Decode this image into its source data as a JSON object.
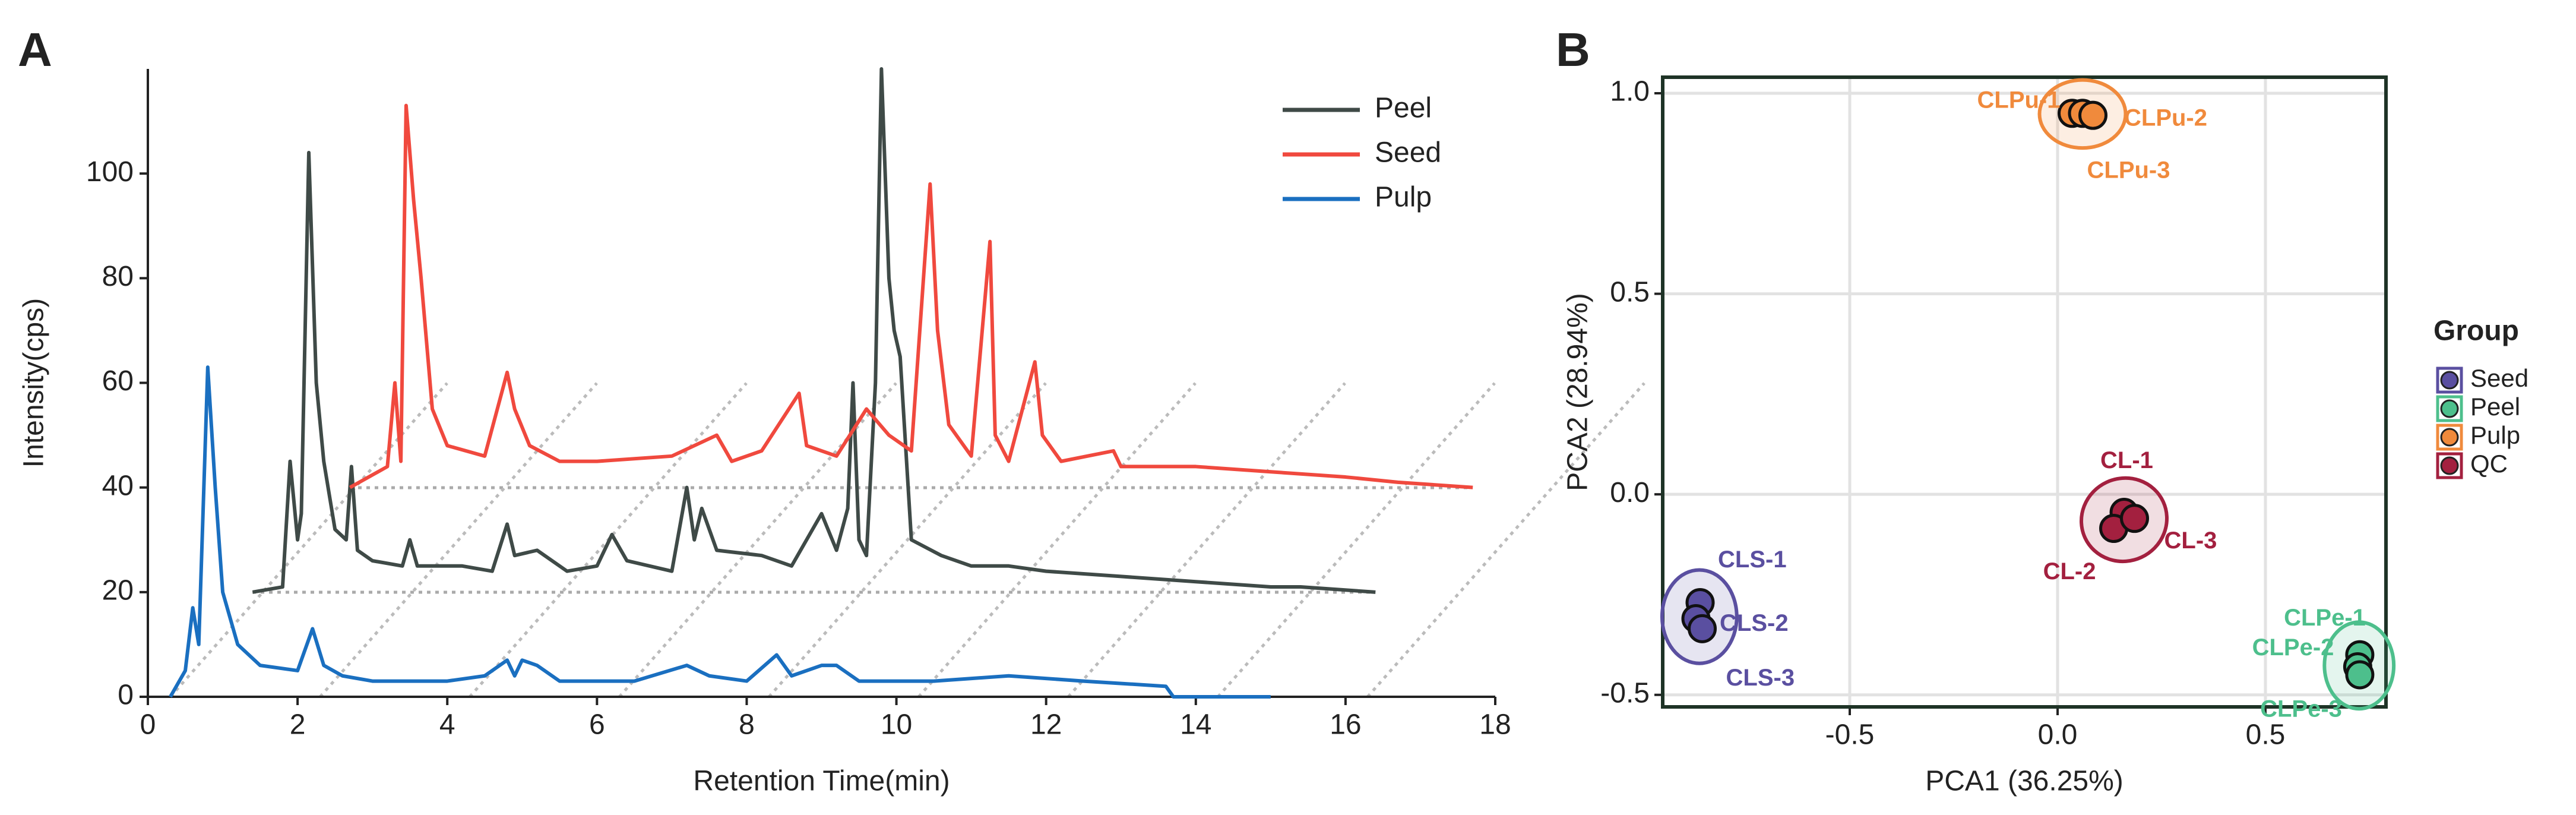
{
  "chart_data": [
    {
      "type": "line",
      "panel": "A",
      "xlabel": "Retention Time(min)",
      "ylabel": "Intensity(cps)",
      "xlim": [
        0,
        18
      ],
      "ylim": [
        0,
        120
      ],
      "xticks": [
        0,
        2,
        4,
        6,
        8,
        10,
        12,
        14,
        16,
        18
      ],
      "yticks": [
        0,
        20,
        40,
        60,
        80,
        100
      ],
      "legend": "upper right",
      "series": [
        {
          "name": "Peel",
          "color": "#3f4a47",
          "x": [
            1.4,
            1.8,
            1.9,
            2.0,
            2.05,
            2.15,
            2.25,
            2.35,
            2.5,
            2.65,
            2.72,
            2.8,
            3.0,
            3.4,
            3.5,
            3.6,
            4.2,
            4.6,
            4.8,
            4.9,
            5.2,
            5.6,
            6.0,
            6.2,
            6.4,
            7.0,
            7.2,
            7.3,
            7.4,
            7.6,
            8.2,
            8.6,
            9.0,
            9.2,
            9.35,
            9.42,
            9.5,
            9.6,
            9.72,
            9.8,
            9.9,
            9.97,
            10.05,
            10.2,
            10.6,
            11.0,
            11.5,
            12.0,
            13.0,
            14.0,
            15.0,
            15.4,
            16.4
          ],
          "values": [
            20,
            21,
            45,
            30,
            35,
            104,
            60,
            45,
            32,
            30,
            44,
            28,
            26,
            25,
            30,
            25,
            25,
            24,
            33,
            27,
            28,
            24,
            25,
            31,
            26,
            24,
            40,
            30,
            36,
            28,
            27,
            25,
            35,
            28,
            36,
            60,
            30,
            27,
            60,
            120,
            80,
            70,
            65,
            30,
            27,
            25,
            25,
            24,
            23,
            22,
            21,
            21,
            20
          ]
        },
        {
          "name": "Seed",
          "color": "#f0493e",
          "x": [
            2.7,
            3.2,
            3.3,
            3.38,
            3.45,
            3.55,
            3.65,
            3.8,
            4.0,
            4.5,
            4.8,
            4.9,
            5.1,
            5.5,
            6.0,
            7.0,
            7.6,
            7.8,
            8.2,
            8.7,
            8.8,
            9.2,
            9.6,
            9.9,
            10.2,
            10.45,
            10.55,
            10.7,
            11.0,
            11.25,
            11.32,
            11.5,
            11.85,
            11.95,
            12.2,
            12.9,
            13.0,
            13.5,
            14.0,
            15.0,
            16.0,
            16.7,
            17.7
          ],
          "values": [
            40,
            44,
            60,
            45,
            113,
            95,
            80,
            55,
            48,
            46,
            62,
            55,
            48,
            45,
            45,
            46,
            50,
            45,
            47,
            58,
            48,
            46,
            55,
            50,
            47,
            98,
            70,
            52,
            46,
            87,
            50,
            45,
            64,
            50,
            45,
            47,
            44,
            44,
            44,
            43,
            42,
            41,
            40
          ]
        },
        {
          "name": "Pulp",
          "color": "#1a6fc0",
          "x": [
            0.3,
            0.5,
            0.6,
            0.68,
            0.8,
            0.9,
            1.0,
            1.2,
            1.5,
            2.0,
            2.2,
            2.35,
            2.6,
            3.0,
            4.0,
            4.5,
            4.8,
            4.9,
            5.0,
            5.2,
            5.5,
            6.5,
            7.2,
            7.5,
            8.0,
            8.4,
            8.6,
            9.0,
            9.2,
            9.5,
            10.5,
            11.5,
            12.5,
            13.6,
            13.7,
            15.0
          ],
          "values": [
            0,
            5,
            17,
            10,
            63,
            40,
            20,
            10,
            6,
            5,
            13,
            6,
            4,
            3,
            3,
            4,
            7,
            4,
            7,
            6,
            3,
            3,
            6,
            4,
            3,
            8,
            4,
            6,
            6,
            3,
            3,
            4,
            3,
            2,
            0,
            0
          ]
        }
      ]
    },
    {
      "type": "scatter",
      "panel": "B",
      "xlabel": "PCA1 (36.25%)",
      "ylabel": "PCA2 (28.94%)",
      "xlim": [
        -0.95,
        0.79
      ],
      "ylim": [
        -0.53,
        1.04
      ],
      "xticks": [
        -0.5,
        {
          "value": 0,
          "label": "0.0"
        },
        0.5
      ],
      "yticks": [
        -0.5,
        {
          "value": 0,
          "label": "0.0"
        },
        0.5,
        {
          "value": 1,
          "label": "1.0"
        }
      ],
      "grid": true,
      "legend_title": "Group",
      "legend": "right",
      "series": [
        {
          "name": "Seed",
          "color": "#5a4fa0",
          "labels": [
            "CLS-1",
            "CLS-2",
            "CLS-3"
          ],
          "x": [
            -0.86,
            -0.87,
            -0.855
          ],
          "values": [
            -0.27,
            -0.31,
            -0.335
          ]
        },
        {
          "name": "Peel",
          "color": "#4dbf8c",
          "labels": [
            "CLPe-1",
            "CLPe-2",
            "CLPe-3"
          ],
          "x": [
            0.727,
            0.722,
            0.727
          ],
          "values": [
            -0.4,
            -0.43,
            -0.45
          ]
        },
        {
          "name": "Pulp",
          "color": "#f08a3c",
          "labels": [
            "CLPu-1",
            "CLPu-2",
            "CLPu-3"
          ],
          "x": [
            0.035,
            0.06,
            0.085
          ],
          "values": [
            0.95,
            0.95,
            0.945
          ]
        },
        {
          "name": "QC",
          "color": "#a3203f",
          "labels": [
            "CL-1",
            "CL-2",
            "CL-3"
          ],
          "x": [
            0.16,
            0.135,
            0.185
          ],
          "values": [
            -0.045,
            -0.085,
            -0.06
          ]
        }
      ]
    }
  ]
}
